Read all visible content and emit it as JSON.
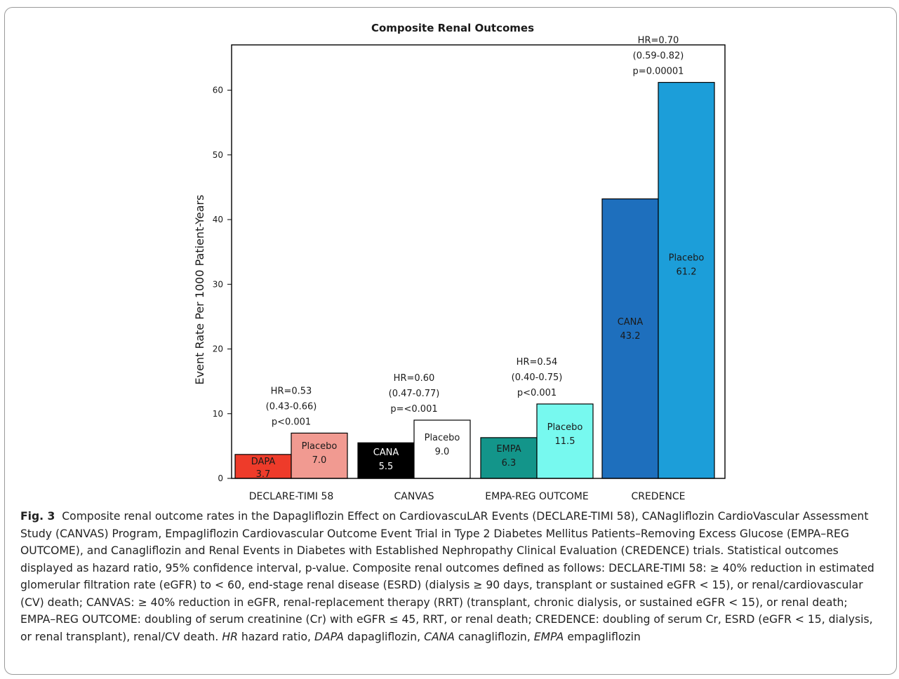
{
  "chart_data": {
    "type": "bar",
    "title": "Composite Renal Outcomes",
    "ylabel": "Event Rate Per 1000 Patient-Years",
    "xlabel": "",
    "ylim": [
      0,
      67
    ],
    "yticks": [
      0,
      10,
      20,
      30,
      40,
      50,
      60
    ],
    "grid": false,
    "groups": [
      {
        "name": "DECLARE-TIMI 58",
        "hr_text": [
          "HR=0.53",
          "(0.43-0.66)",
          "p<0.001"
        ],
        "bars": [
          {
            "label": "DAPA",
            "value": 3.7,
            "value_text": "3.7",
            "color": "#ee3b2a",
            "text_color": "#1a1a1a"
          },
          {
            "label": "Placebo",
            "value": 7.0,
            "value_text": "7.0",
            "color": "#f19a91",
            "text_color": "#1a1a1a"
          }
        ]
      },
      {
        "name": "CANVAS",
        "hr_text": [
          "HR=0.60",
          "(0.47-0.77)",
          "p=<0.001"
        ],
        "bars": [
          {
            "label": "CANA",
            "value": 5.5,
            "value_text": "5.5",
            "color": "#000000",
            "text_color": "#ffffff"
          },
          {
            "label": "Placebo",
            "value": 9.0,
            "value_text": "9.0",
            "color": "#ffffff",
            "text_color": "#1a1a1a"
          }
        ]
      },
      {
        "name": "EMPA-REG OUTCOME",
        "hr_text": [
          "HR=0.54",
          "(0.40-0.75)",
          "p<0.001"
        ],
        "bars": [
          {
            "label": "EMPA",
            "value": 6.3,
            "value_text": "6.3",
            "color": "#13958a",
            "text_color": "#1a1a1a"
          },
          {
            "label": "Placebo",
            "value": 11.5,
            "value_text": "11.5",
            "color": "#77f9ef",
            "text_color": "#1a1a1a"
          }
        ]
      },
      {
        "name": "CREDENCE",
        "hr_text": [
          "HR=0.70",
          "(0.59-0.82)",
          "p=0.00001"
        ],
        "bars": [
          {
            "label": "CANA",
            "value": 43.2,
            "value_text": "43.2",
            "color": "#1e6fbd",
            "text_color": "#1a1a1a"
          },
          {
            "label": "Placebo",
            "value": 61.2,
            "value_text": "61.2",
            "color": "#1c9ed9",
            "text_color": "#1a1a1a"
          }
        ]
      }
    ]
  },
  "caption": {
    "fig_label": "Fig. 3",
    "p1": "Composite renal outcome rates in the Dapagliflozin Effect on CardiovascuLAR Events (DECLARE-TIMI 58), CANagliflozin CardioVascular Assessment Study (CANVAS) Program, Empagliflozin Cardiovascular Outcome Event Trial in Type 2 Diabetes Mellitus Patients–Removing Excess Glucose (EMPA–REG OUTCOME), and Canagliflozin and Renal Events in Diabetes with Established Nephropathy Clinical Evaluation (CREDENCE) trials. Statistical outcomes displayed as hazard ratio, 95% confidence interval, p-value. Composite renal outcomes defined as follows: DECLARE-TIMI 58: ≥ 40% reduction in estimated glomerular filtration rate (eGFR) to < 60, end-stage renal disease (ESRD) (dialysis ≥ 90 days, transplant or sustained eGFR < 15), or renal/cardiovascular (CV) death; CANVAS: ≥ 40% reduction in eGFR, renal-replacement therapy (RRT) (transplant, chronic dialysis, or sustained eGFR < 15), or renal death; EMPA–REG OUTCOME: doubling of serum creatinine (Cr) with eGFR ≤ 45, RRT, or renal death; CREDENCE: doubling of serum Cr, ESRD (eGFR < 15, dialysis, or renal transplant), renal/CV death.",
    "abbr_hr": "HR",
    "abbr_hr_def": "hazard ratio,",
    "abbr_dapa": "DAPA",
    "abbr_dapa_def": "dapagliflozin,",
    "abbr_cana": "CANA",
    "abbr_cana_def": "canagliflozin,",
    "abbr_empa": "EMPA",
    "abbr_empa_def": "empagliflozin"
  }
}
